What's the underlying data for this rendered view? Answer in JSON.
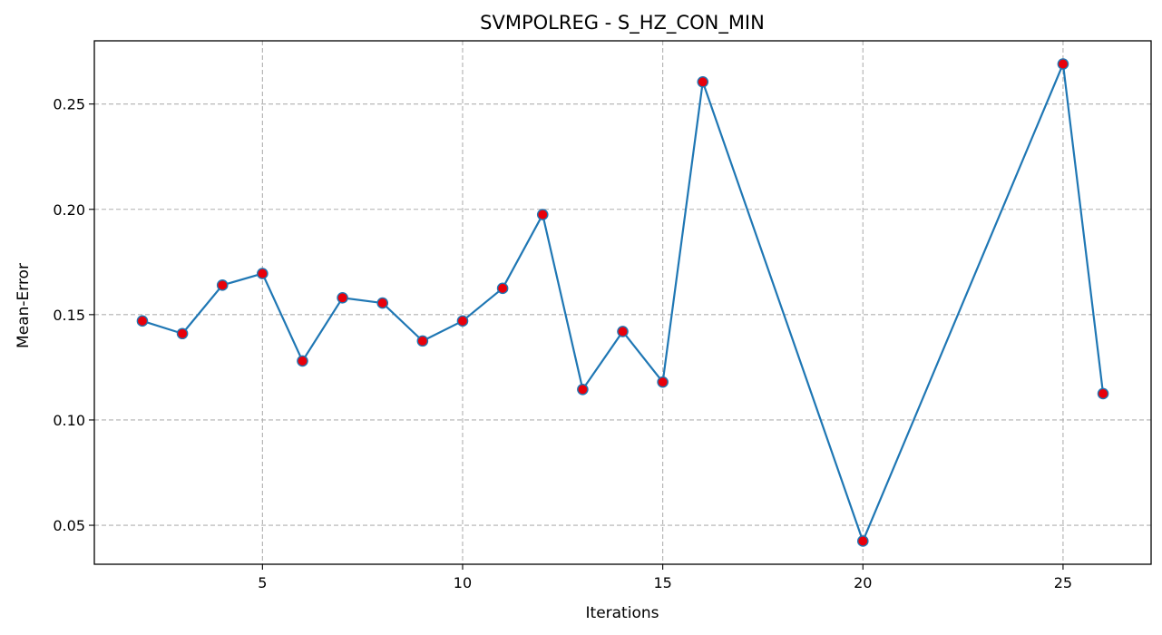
{
  "chart_data": {
    "type": "line",
    "title": "SVMPOLREG - S_HZ_CON_MIN",
    "xlabel": "Iterations",
    "ylabel": "Mean-Error",
    "xlim": [
      0.8,
      27.2
    ],
    "ylim": [
      0.0315,
      0.28
    ],
    "xticks": [
      5,
      10,
      15,
      20,
      25
    ],
    "yticks": [
      0.05,
      0.1,
      0.15,
      0.2,
      0.25
    ],
    "ytick_labels": [
      "0.05",
      "0.10",
      "0.15",
      "0.20",
      "0.25"
    ],
    "grid": true,
    "series": [
      {
        "x": [
          2,
          3,
          4,
          5,
          6,
          7,
          8,
          9,
          10,
          11,
          12,
          13,
          14,
          15,
          16,
          20,
          25,
          26
        ],
        "y": [
          0.147,
          0.141,
          0.164,
          0.1695,
          0.128,
          0.158,
          0.1555,
          0.1375,
          0.147,
          0.1625,
          0.1975,
          0.1145,
          0.142,
          0.118,
          0.2605,
          0.0425,
          0.269,
          0.1125
        ],
        "line_color": "#1f77b4",
        "marker_face": "#e8000b",
        "marker_edge": "#1f77b4"
      }
    ]
  }
}
